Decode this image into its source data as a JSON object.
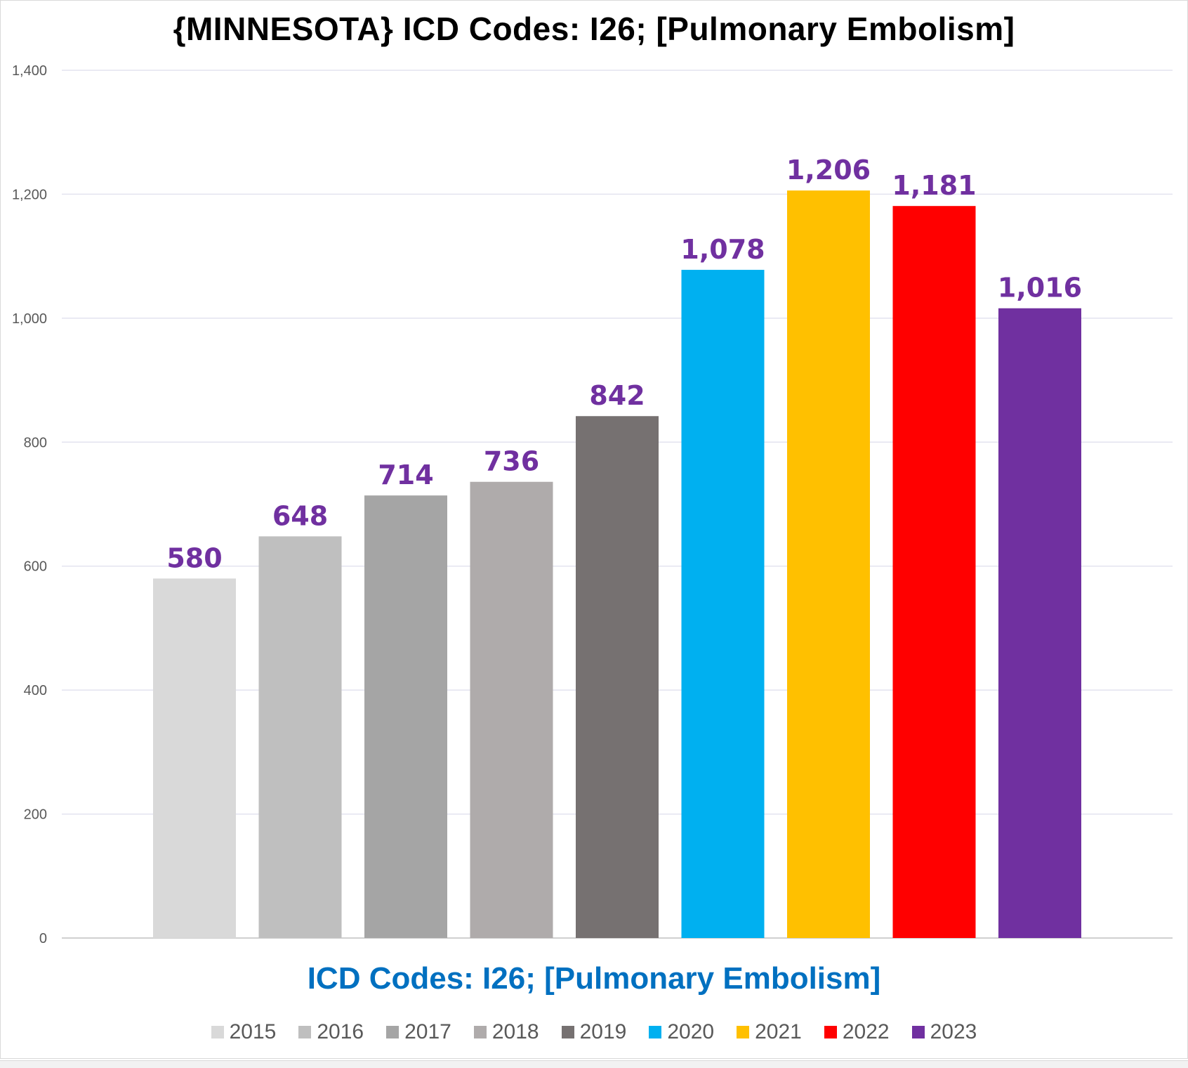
{
  "chart_data": {
    "type": "bar",
    "title": "{MINNESOTA}  ICD Codes: I26;  [Pulmonary Embolism]",
    "xlabel": "ICD Codes: I26;  [Pulmonary Embolism]",
    "ylabel": "",
    "ylim": [
      0,
      1400
    ],
    "yticks": [
      0,
      200,
      400,
      600,
      800,
      1000,
      1200,
      1400
    ],
    "ytick_labels": [
      "0",
      "200",
      "400",
      "600",
      "800",
      "1,000",
      "1,200",
      "1,400"
    ],
    "grid": true,
    "legend_position": "bottom",
    "series": [
      {
        "name": "2015",
        "value": 580,
        "label": "580",
        "color": "#d9d9d9"
      },
      {
        "name": "2016",
        "value": 648,
        "label": "648",
        "color": "#bfbfbf"
      },
      {
        "name": "2017",
        "value": 714,
        "label": "714",
        "color": "#a5a5a5"
      },
      {
        "name": "2018",
        "value": 736,
        "label": "736",
        "color": "#afabab"
      },
      {
        "name": "2019",
        "value": 842,
        "label": "842",
        "color": "#767171"
      },
      {
        "name": "2020",
        "value": 1078,
        "label": "1,078",
        "color": "#00b0f0"
      },
      {
        "name": "2021",
        "value": 1206,
        "label": "1,206",
        "color": "#ffc000"
      },
      {
        "name": "2022",
        "value": 1181,
        "label": "1,181",
        "color": "#ff0000"
      },
      {
        "name": "2023",
        "value": 1016,
        "label": "1,016",
        "color": "#7030a0"
      }
    ]
  }
}
